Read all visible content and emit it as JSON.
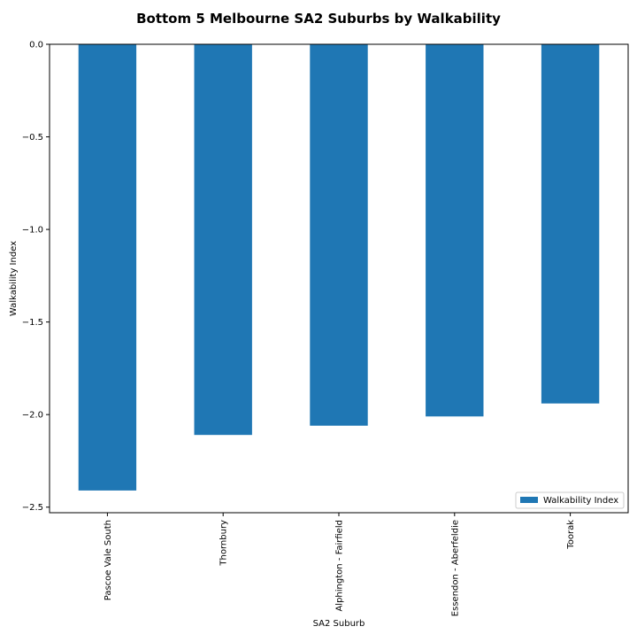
{
  "chart_data": {
    "type": "bar",
    "title": "Bottom 5 Melbourne SA2 Suburbs by Walkability",
    "xlabel": "SA2 Suburb",
    "ylabel": "Walkability Index",
    "categories": [
      "Pascoe Vale South",
      "Thornbury",
      "Alphington - Fairfield",
      "Essendon - Aberfeldie",
      "Toorak"
    ],
    "series": [
      {
        "name": "Walkability Index",
        "values": [
          -2.41,
          -2.11,
          -2.06,
          -2.01,
          -1.94
        ],
        "color": "#1f77b4"
      }
    ],
    "ylim": [
      -2.53,
      0.0
    ],
    "yticks": [
      0.0,
      -0.5,
      -1.0,
      -1.5,
      -2.0,
      -2.5
    ],
    "ytick_labels": [
      "0.0",
      "−0.5",
      "−1.0",
      "−1.5",
      "−2.0",
      "−2.5"
    ],
    "grid": false,
    "legend_position": "bottom-right"
  }
}
